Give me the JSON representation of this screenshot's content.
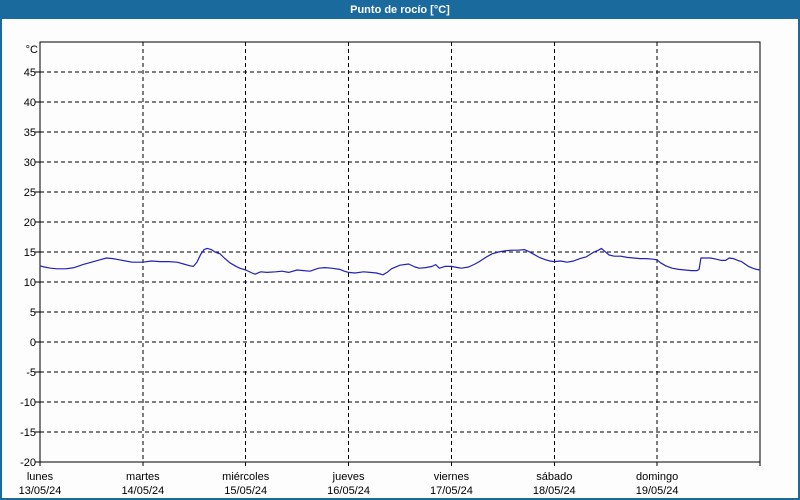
{
  "window": {
    "title_bar": {
      "label": "Punto de rocío [°C]"
    }
  },
  "colors": {
    "frame_blue": "#1b6a9e",
    "title_text": "#ffffff",
    "line_blue": "#2222b8",
    "grid_black": "#000000",
    "plot_background": "#fdfdfd"
  },
  "chart_data": {
    "type": "line",
    "title": "Punto de rocío [°C]",
    "ylabel": "°C",
    "xlabel": "",
    "grid": true,
    "legend_position": "none",
    "ylim": [
      -20,
      50
    ],
    "yticks": [
      45,
      40,
      35,
      30,
      25,
      20,
      15,
      10,
      5,
      0,
      -5,
      -10,
      -15,
      -20
    ],
    "x_axis": {
      "unit": "hours_from_start",
      "range": [
        0,
        168
      ],
      "day_boundaries_hours": [
        0,
        24,
        48,
        72,
        96,
        120,
        144,
        168
      ],
      "day_labels": [
        {
          "hour": 0,
          "name": "lunes",
          "date": "13/05/24"
        },
        {
          "hour": 24,
          "name": "martes",
          "date": "14/05/24"
        },
        {
          "hour": 48,
          "name": "miércoles",
          "date": "15/05/24"
        },
        {
          "hour": 72,
          "name": "jueves",
          "date": "16/05/24"
        },
        {
          "hour": 96,
          "name": "viernes",
          "date": "17/05/24"
        },
        {
          "hour": 120,
          "name": "sábado",
          "date": "18/05/24"
        },
        {
          "hour": 144,
          "name": "domingo",
          "date": "19/05/24"
        }
      ]
    },
    "series": [
      {
        "name": "Punto de rocío",
        "color": "#2222b8",
        "points": [
          [
            0,
            12.7
          ],
          [
            1,
            12.5
          ],
          [
            2.5,
            12.3
          ],
          [
            4,
            12.2
          ],
          [
            6,
            12.2
          ],
          [
            8,
            12.4
          ],
          [
            10,
            12.9
          ],
          [
            12,
            13.3
          ],
          [
            14,
            13.7
          ],
          [
            15.5,
            14.0
          ],
          [
            17,
            13.9
          ],
          [
            18.5,
            13.7
          ],
          [
            20,
            13.5
          ],
          [
            21.5,
            13.3
          ],
          [
            23,
            13.3
          ],
          [
            24,
            13.3
          ],
          [
            26,
            13.5
          ],
          [
            28,
            13.4
          ],
          [
            30,
            13.4
          ],
          [
            32,
            13.3
          ],
          [
            33.5,
            13.0
          ],
          [
            35,
            12.7
          ],
          [
            35.8,
            12.6
          ],
          [
            36.6,
            13.3
          ],
          [
            37.5,
            14.6
          ],
          [
            38.3,
            15.4
          ],
          [
            39,
            15.6
          ],
          [
            40,
            15.4
          ],
          [
            40.8,
            15.0
          ],
          [
            42,
            14.7
          ],
          [
            43,
            14.0
          ],
          [
            44.3,
            13.2
          ],
          [
            45.5,
            12.7
          ],
          [
            46.6,
            12.3
          ],
          [
            48,
            12.0
          ],
          [
            49.5,
            11.5
          ],
          [
            50.2,
            11.3
          ],
          [
            51.5,
            11.7
          ],
          [
            53,
            11.6
          ],
          [
            55,
            11.7
          ],
          [
            56.5,
            11.8
          ],
          [
            58,
            11.6
          ],
          [
            60,
            12.0
          ],
          [
            61.5,
            11.9
          ],
          [
            63,
            11.8
          ],
          [
            65,
            12.3
          ],
          [
            66.5,
            12.4
          ],
          [
            68,
            12.3
          ],
          [
            70,
            12.1
          ],
          [
            71,
            11.8
          ],
          [
            72,
            11.6
          ],
          [
            73.5,
            11.5
          ],
          [
            75.5,
            11.7
          ],
          [
            77,
            11.6
          ],
          [
            78.5,
            11.5
          ],
          [
            80,
            11.2
          ],
          [
            81,
            11.6
          ],
          [
            82,
            12.2
          ],
          [
            84,
            12.8
          ],
          [
            86,
            13.0
          ],
          [
            87.5,
            12.5
          ],
          [
            88.5,
            12.3
          ],
          [
            90,
            12.4
          ],
          [
            91.5,
            12.6
          ],
          [
            92.3,
            12.9
          ],
          [
            93.2,
            12.3
          ],
          [
            94.5,
            12.6
          ],
          [
            96,
            12.6
          ],
          [
            97.5,
            12.4
          ],
          [
            98.3,
            12.3
          ],
          [
            100,
            12.5
          ],
          [
            101.5,
            13.0
          ],
          [
            102.5,
            13.4
          ],
          [
            104,
            14.1
          ],
          [
            105.5,
            14.7
          ],
          [
            107,
            15.0
          ],
          [
            108.5,
            15.2
          ],
          [
            110,
            15.3
          ],
          [
            111.5,
            15.3
          ],
          [
            113,
            15.4
          ],
          [
            114,
            15.1
          ],
          [
            115,
            14.7
          ],
          [
            116.5,
            14.1
          ],
          [
            118,
            13.7
          ],
          [
            119,
            13.5
          ],
          [
            120,
            13.4
          ],
          [
            121.5,
            13.5
          ],
          [
            123,
            13.3
          ],
          [
            124.5,
            13.5
          ],
          [
            126,
            13.9
          ],
          [
            127.5,
            14.2
          ],
          [
            129,
            14.9
          ],
          [
            130.3,
            15.3
          ],
          [
            131,
            15.6
          ],
          [
            131.8,
            15.1
          ],
          [
            132.8,
            14.5
          ],
          [
            134,
            14.3
          ],
          [
            135.5,
            14.3
          ],
          [
            137,
            14.1
          ],
          [
            138.5,
            14.0
          ],
          [
            140,
            13.9
          ],
          [
            141.5,
            13.9
          ],
          [
            143,
            13.8
          ],
          [
            144,
            13.7
          ],
          [
            144.8,
            13.2
          ],
          [
            146,
            12.7
          ],
          [
            147.5,
            12.3
          ],
          [
            149,
            12.1
          ],
          [
            150.5,
            12.0
          ],
          [
            152,
            11.9
          ],
          [
            153.3,
            11.9
          ],
          [
            153.8,
            12.1
          ],
          [
            154.2,
            14.0
          ],
          [
            155.5,
            14.0
          ],
          [
            156.5,
            14.0
          ],
          [
            157.8,
            13.8
          ],
          [
            159,
            13.6
          ],
          [
            160,
            13.6
          ],
          [
            160.8,
            14.0
          ],
          [
            161.8,
            13.9
          ],
          [
            162.8,
            13.6
          ],
          [
            163.7,
            13.4
          ],
          [
            164.5,
            13.0
          ],
          [
            165.3,
            12.6
          ],
          [
            166.3,
            12.3
          ],
          [
            167.2,
            12.1
          ],
          [
            168,
            12.0
          ]
        ]
      }
    ]
  }
}
